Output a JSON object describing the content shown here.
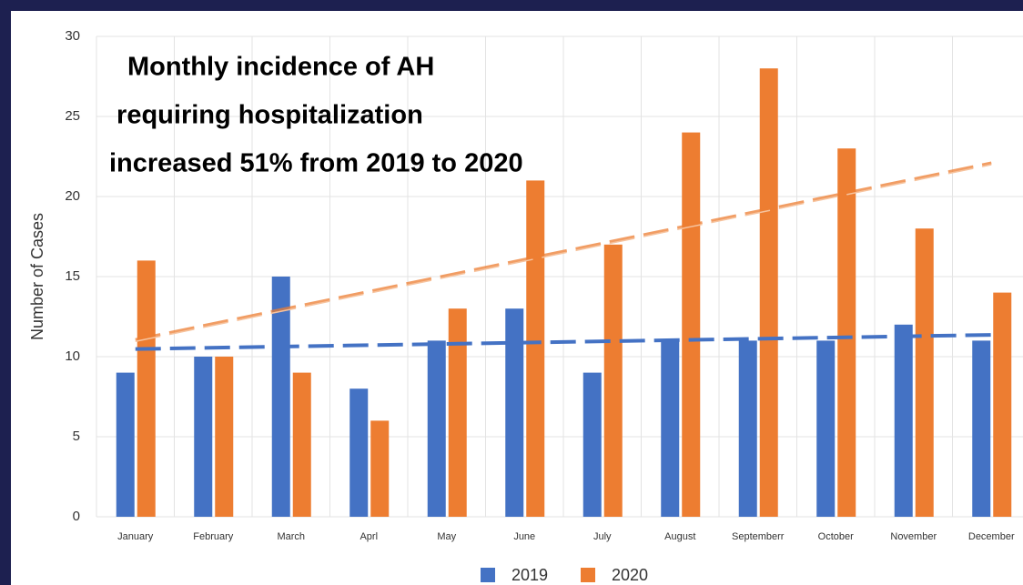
{
  "chart_data": {
    "type": "bar",
    "title_lines": [
      "Monthly incidence of AH",
      " requiring hospitalization",
      "increased 51% from 2019 to 2020"
    ],
    "y_label": "Number of Cases",
    "categories": [
      "January",
      "February",
      "March",
      "Aprl",
      "May",
      "June",
      "July",
      "August",
      "Septemberr",
      "October",
      "November",
      "December"
    ],
    "series": [
      {
        "name": "2019",
        "color": "#4472c4",
        "values": [
          9,
          10,
          15,
          8,
          11,
          13,
          9,
          11,
          11,
          11,
          12,
          11
        ]
      },
      {
        "name": "2020",
        "color": "#ed7d31",
        "values": [
          16,
          10,
          9,
          6,
          13,
          21,
          17,
          24,
          28,
          23,
          18,
          14
        ]
      }
    ],
    "trendline": "linear",
    "ylim": [
      0,
      30
    ],
    "yticks": [
      0,
      5,
      10,
      15,
      20,
      25,
      30
    ],
    "grid": true,
    "legend": "bottom"
  }
}
